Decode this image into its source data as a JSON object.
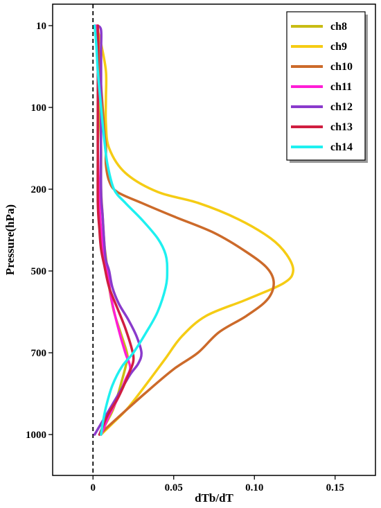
{
  "chart_data": {
    "type": "line",
    "title": "",
    "xlabel": "dTb/dT",
    "ylabel": "Pressure(hPa)",
    "xlim": [
      -0.025,
      0.175
    ],
    "xticks": [
      0,
      0.05,
      0.1,
      0.15
    ],
    "xtick_labels": [
      "0",
      "0.05",
      "0.10",
      "0.15"
    ],
    "yticks": [
      10,
      100,
      200,
      500,
      700,
      1000
    ],
    "ytick_labels": [
      "10",
      "100",
      "200",
      "500",
      "700",
      "1000"
    ],
    "reference_line": {
      "x": 0,
      "style": "dashed"
    },
    "legend": {
      "placement": "top-right"
    },
    "grid": false,
    "series": [
      {
        "name": "ch8",
        "color": "#c8bc14",
        "points": [
          [
            0.002,
            10
          ],
          [
            0.003,
            50
          ],
          [
            0.004,
            100
          ],
          [
            0.005,
            150
          ],
          [
            0.005,
            200
          ],
          [
            0.006,
            300
          ],
          [
            0.007,
            400
          ],
          [
            0.008,
            450
          ],
          [
            0.009,
            500
          ],
          [
            0.01,
            540
          ],
          [
            0.013,
            600
          ],
          [
            0.017,
            650
          ],
          [
            0.021,
            700
          ],
          [
            0.021,
            730
          ],
          [
            0.018,
            800
          ],
          [
            0.013,
            900
          ],
          [
            0.008,
            960
          ],
          [
            0.005,
            1000
          ]
        ]
      },
      {
        "name": "ch9",
        "color": "#f5cc14",
        "points": [
          [
            0.002,
            10
          ],
          [
            0.005,
            30
          ],
          [
            0.008,
            60
          ],
          [
            0.008,
            90
          ],
          [
            0.008,
            120
          ],
          [
            0.01,
            150
          ],
          [
            0.02,
            180
          ],
          [
            0.04,
            210
          ],
          [
            0.065,
            250
          ],
          [
            0.09,
            310
          ],
          [
            0.11,
            380
          ],
          [
            0.12,
            440
          ],
          [
            0.124,
            500
          ],
          [
            0.118,
            530
          ],
          [
            0.095,
            570
          ],
          [
            0.07,
            610
          ],
          [
            0.055,
            660
          ],
          [
            0.045,
            720
          ],
          [
            0.035,
            800
          ],
          [
            0.022,
            900
          ],
          [
            0.012,
            960
          ],
          [
            0.005,
            1000
          ]
        ]
      },
      {
        "name": "ch10",
        "color": "#cc6a2a",
        "points": [
          [
            0.003,
            10
          ],
          [
            0.004,
            50
          ],
          [
            0.006,
            100
          ],
          [
            0.007,
            130
          ],
          [
            0.008,
            150
          ],
          [
            0.008,
            170
          ],
          [
            0.01,
            190
          ],
          [
            0.015,
            210
          ],
          [
            0.03,
            250
          ],
          [
            0.05,
            300
          ],
          [
            0.075,
            360
          ],
          [
            0.095,
            430
          ],
          [
            0.108,
            490
          ],
          [
            0.112,
            530
          ],
          [
            0.108,
            570
          ],
          [
            0.095,
            610
          ],
          [
            0.078,
            650
          ],
          [
            0.065,
            700
          ],
          [
            0.05,
            760
          ],
          [
            0.032,
            850
          ],
          [
            0.015,
            940
          ],
          [
            0.004,
            1000
          ]
        ]
      },
      {
        "name": "ch11",
        "color": "#ff1ed6",
        "points": [
          [
            0.002,
            10
          ],
          [
            0.003,
            60
          ],
          [
            0.003,
            150
          ],
          [
            0.004,
            250
          ],
          [
            0.005,
            350
          ],
          [
            0.007,
            450
          ],
          [
            0.009,
            500
          ],
          [
            0.011,
            560
          ],
          [
            0.015,
            630
          ],
          [
            0.02,
            700
          ],
          [
            0.022,
            730
          ],
          [
            0.023,
            760
          ],
          [
            0.02,
            800
          ],
          [
            0.016,
            860
          ],
          [
            0.01,
            930
          ],
          [
            0.005,
            1000
          ]
        ]
      },
      {
        "name": "ch12",
        "color": "#8a3acc",
        "points": [
          [
            0.003,
            10
          ],
          [
            0.005,
            15
          ],
          [
            0.005,
            40
          ],
          [
            0.005,
            100
          ],
          [
            0.005,
            200
          ],
          [
            0.006,
            300
          ],
          [
            0.007,
            400
          ],
          [
            0.008,
            460
          ],
          [
            0.01,
            500
          ],
          [
            0.012,
            540
          ],
          [
            0.016,
            580
          ],
          [
            0.022,
            620
          ],
          [
            0.027,
            660
          ],
          [
            0.03,
            700
          ],
          [
            0.028,
            740
          ],
          [
            0.023,
            780
          ],
          [
            0.015,
            860
          ],
          [
            0.008,
            930
          ],
          [
            0.001,
            1000
          ]
        ]
      },
      {
        "name": "ch13",
        "color": "#d01e40",
        "points": [
          [
            0.003,
            10
          ],
          [
            0.003,
            80
          ],
          [
            0.003,
            150
          ],
          [
            0.003,
            250
          ],
          [
            0.004,
            350
          ],
          [
            0.005,
            420
          ],
          [
            0.007,
            480
          ],
          [
            0.01,
            540
          ],
          [
            0.015,
            590
          ],
          [
            0.02,
            640
          ],
          [
            0.024,
            690
          ],
          [
            0.025,
            730
          ],
          [
            0.022,
            780
          ],
          [
            0.016,
            860
          ],
          [
            0.009,
            930
          ],
          [
            0.004,
            1000
          ]
        ]
      },
      {
        "name": "ch14",
        "color": "#1ef0f0",
        "points": [
          [
            0.001,
            10
          ],
          [
            0.002,
            30
          ],
          [
            0.003,
            60
          ],
          [
            0.005,
            100
          ],
          [
            0.007,
            140
          ],
          [
            0.009,
            170
          ],
          [
            0.013,
            200
          ],
          [
            0.02,
            250
          ],
          [
            0.03,
            310
          ],
          [
            0.04,
            380
          ],
          [
            0.045,
            440
          ],
          [
            0.046,
            500
          ],
          [
            0.045,
            540
          ],
          [
            0.04,
            600
          ],
          [
            0.033,
            650
          ],
          [
            0.025,
            700
          ],
          [
            0.018,
            750
          ],
          [
            0.012,
            820
          ],
          [
            0.008,
            900
          ],
          [
            0.006,
            960
          ],
          [
            0.005,
            1000
          ]
        ]
      }
    ]
  }
}
